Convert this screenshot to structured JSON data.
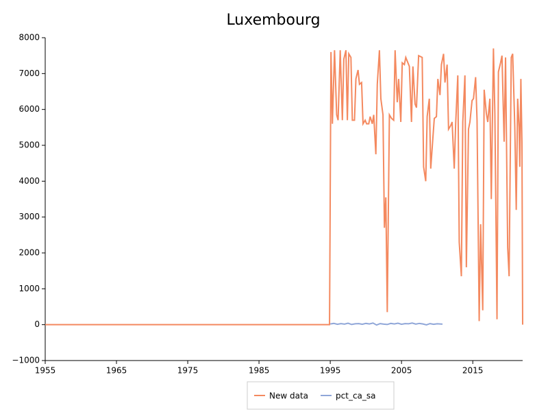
{
  "chart_data": {
    "type": "line",
    "title": "Luxembourg",
    "xlim": [
      1955,
      2022
    ],
    "xticks": [
      1955,
      1965,
      1975,
      1985,
      1995,
      2005,
      2015
    ],
    "ylim": [
      -1000,
      8000
    ],
    "yticks": [
      {
        "value": -1000,
        "label": "−1000"
      },
      0,
      1000,
      2000,
      3000,
      4000,
      5000,
      6000,
      7000,
      8000
    ],
    "grid": false,
    "legend": "bottom",
    "series": [
      {
        "name": "New data",
        "color": "#f4895f",
        "x": [
          1955,
          1994.9,
          1995.1,
          1995.3,
          1995.6,
          1995.9,
          1996.1,
          1996.4,
          1996.7,
          1996.9,
          1997.2,
          1997.4,
          1997.6,
          1997.9,
          1998.1,
          1998.4,
          1998.6,
          1998.9,
          1999.1,
          1999.4,
          1999.6,
          1999.9,
          2000.1,
          2000.4,
          2000.6,
          2000.9,
          2001.1,
          2001.4,
          2001.6,
          2001.9,
          2002.1,
          2002.4,
          2002.6,
          2002.8,
          2003.0,
          2003.3,
          2003.6,
          2003.9,
          2004.1,
          2004.4,
          2004.6,
          2004.9,
          2005.1,
          2005.4,
          2005.6,
          2005.9,
          2006.1,
          2006.4,
          2006.6,
          2006.9,
          2007.1,
          2007.4,
          2007.9,
          2008.1,
          2008.4,
          2008.6,
          2008.9,
          2009.1,
          2009.4,
          2009.6,
          2009.9,
          2010.1,
          2010.4,
          2010.6,
          2010.9,
          2011.1,
          2011.4,
          2011.6,
          2011.9,
          2012.1,
          2012.4,
          2012.6,
          2012.9,
          2013.1,
          2013.4,
          2013.6,
          2013.9,
          2014.1,
          2014.4,
          2014.6,
          2014.9,
          2015.1,
          2015.4,
          2015.6,
          2015.9,
          2016.1,
          2016.4,
          2016.6,
          2016.9,
          2017.1,
          2017.4,
          2017.6,
          2017.9,
          2018.1,
          2018.4,
          2018.6,
          2018.9,
          2019.1,
          2019.4,
          2019.6,
          2019.9,
          2020.1,
          2020.4,
          2020.6,
          2020.9,
          2021.1,
          2021.3,
          2021.5,
          2021.6,
          2021.75,
          2021.9,
          2022
        ],
        "values": [
          0,
          0,
          7600,
          5600,
          7650,
          5850,
          5700,
          7650,
          5700,
          7400,
          7650,
          5700,
          7550,
          7450,
          5700,
          5700,
          6850,
          7100,
          6700,
          6750,
          5600,
          5700,
          5600,
          5600,
          5800,
          5600,
          5850,
          4750,
          6700,
          7650,
          6300,
          5850,
          2700,
          3550,
          350,
          5850,
          5750,
          5700,
          7650,
          6200,
          6850,
          5650,
          7300,
          7250,
          7450,
          7300,
          7200,
          5650,
          7200,
          6150,
          6050,
          7500,
          7450,
          4400,
          4000,
          5800,
          6300,
          4350,
          5200,
          5750,
          5800,
          6850,
          6400,
          7250,
          7550,
          6750,
          7250,
          5450,
          5550,
          5650,
          4350,
          5600,
          6950,
          2300,
          1350,
          5650,
          6950,
          1600,
          5450,
          5650,
          6250,
          6300,
          6900,
          5700,
          100,
          2800,
          400,
          6550,
          5900,
          5650,
          6300,
          3500,
          7700,
          5900,
          150,
          7050,
          7300,
          7500,
          5100,
          7450,
          2150,
          1350,
          7450,
          7550,
          5500,
          3200,
          6300,
          5500,
          4400,
          6850,
          5100,
          0
        ]
      },
      {
        "name": "pct_ca_sa",
        "color": "#8fa6d8",
        "axis": "y",
        "x": [
          1995,
          1995.5,
          1996,
          1996.5,
          1997,
          1997.5,
          1998,
          1998.5,
          1999,
          1999.5,
          2000,
          2000.5,
          2001,
          2001.5,
          2002,
          2002.5,
          2003,
          2003.5,
          2004,
          2004.5,
          2005,
          2005.5,
          2006,
          2006.5,
          2007,
          2007.5,
          2008,
          2008.5,
          2009,
          2009.5,
          2010,
          2010.75
        ],
        "values": [
          20,
          35,
          10,
          30,
          15,
          40,
          5,
          25,
          30,
          10,
          35,
          20,
          45,
          -10,
          30,
          15,
          5,
          35,
          20,
          40,
          10,
          30,
          25,
          45,
          15,
          35,
          20,
          -5,
          30,
          10,
          25,
          15
        ]
      }
    ]
  }
}
